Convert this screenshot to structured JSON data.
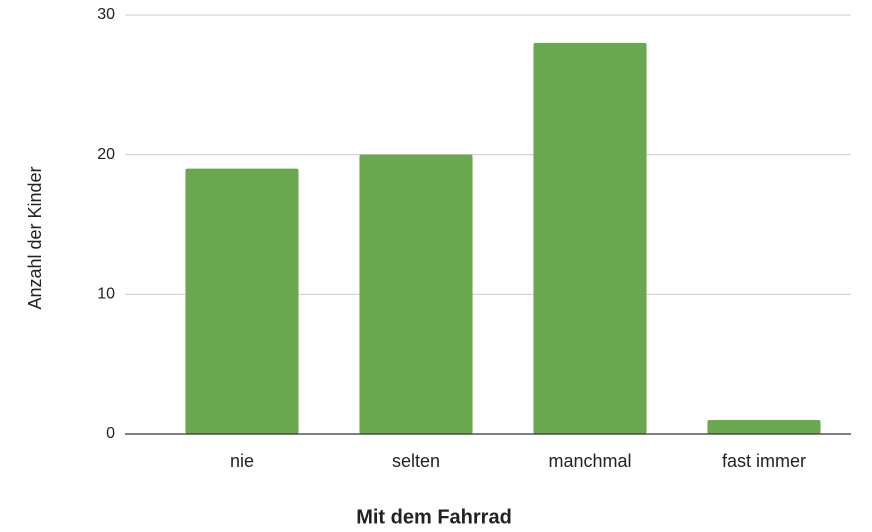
{
  "chart_data": {
    "type": "bar",
    "x_label": "Mit dem Fahrrad",
    "y_label": "Anzahl der Kinder",
    "categories": [
      "nie",
      "selten",
      "manchmal",
      "fast immer"
    ],
    "values": [
      19,
      20,
      28,
      1
    ],
    "color": "#6aa84f",
    "ylim": [
      0,
      30
    ],
    "yticks": [
      0,
      10,
      20,
      30
    ],
    "grid": true
  }
}
